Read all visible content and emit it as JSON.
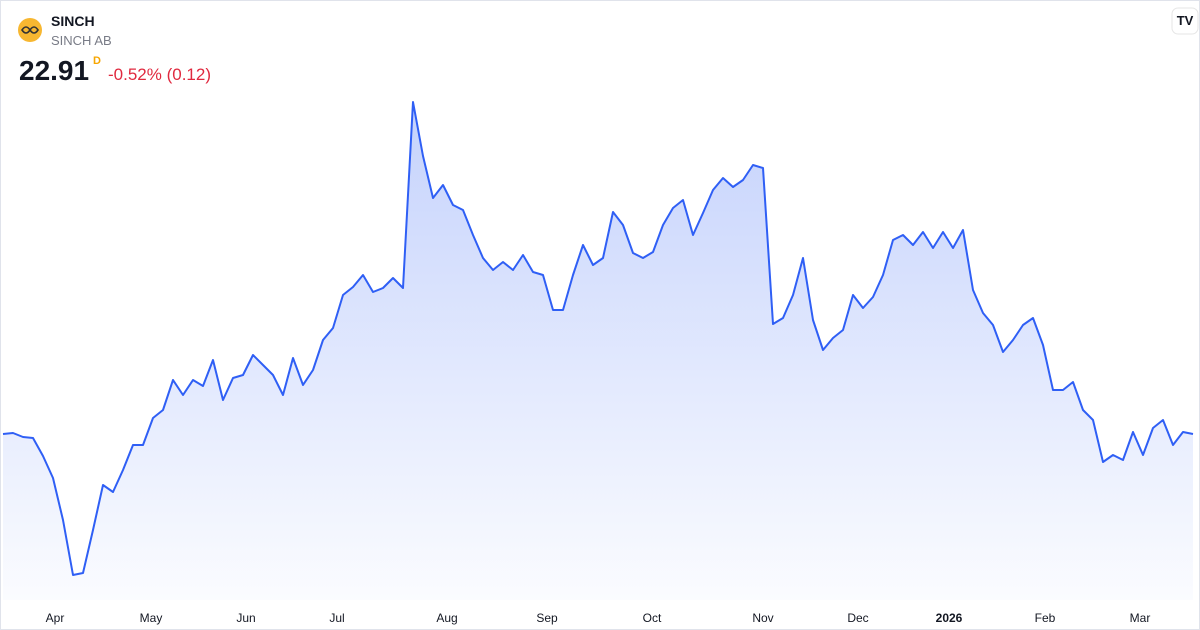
{
  "header": {
    "symbol": "SINCH",
    "name": "SINCH AB",
    "price": "22.91",
    "interval": "D",
    "change": "-0.52% (0.12)"
  },
  "chart_data": {
    "type": "area",
    "series": [
      {
        "name": "SINCH",
        "color": "#2f5ff5",
        "values": [
          22.91,
          22.95,
          22.79,
          22.75,
          22.03,
          21.15,
          19.47,
          17.27,
          17.35,
          19.07,
          20.87,
          20.59,
          21.47,
          22.47,
          22.47,
          23.55,
          23.87,
          25.07,
          24.47,
          25.07,
          24.83,
          25.87,
          24.27,
          25.15,
          25.27,
          26.07,
          25.67,
          25.27,
          24.47,
          25.95,
          24.87,
          25.47,
          26.67,
          27.15,
          28.47,
          28.79,
          29.27,
          28.59,
          28.75,
          29.15,
          28.75,
          36.19,
          34.03,
          32.35,
          32.87,
          32.07,
          31.87,
          30.87,
          29.95,
          29.47,
          29.79,
          29.47,
          30.07,
          29.39,
          29.27,
          27.87,
          27.87,
          29.27,
          30.47,
          29.67,
          29.95,
          31.79,
          31.27,
          30.15,
          29.95,
          30.19,
          31.27,
          31.95,
          32.27,
          30.87,
          31.75,
          32.67,
          33.15,
          32.79,
          33.07,
          33.67,
          33.55,
          27.31,
          27.55,
          28.47,
          29.95,
          27.47,
          26.27,
          26.75,
          27.07,
          28.47,
          27.95,
          28.39,
          29.27,
          30.67,
          30.87,
          30.47,
          30.99,
          30.35,
          30.99,
          30.35,
          31.07,
          28.67,
          27.75,
          27.27,
          26.19,
          26.67,
          27.27,
          27.55,
          26.47,
          24.67,
          24.67,
          24.99,
          23.87,
          23.47,
          21.79,
          22.07,
          21.87,
          22.99,
          22.07,
          23.15,
          23.47,
          22.47,
          22.99,
          22.91
        ]
      }
    ],
    "xlim": [
      0,
      119
    ],
    "xticks": [
      {
        "value": 5.2,
        "label": "Apr"
      },
      {
        "value": 14.8,
        "label": "May"
      },
      {
        "value": 24.3,
        "label": "Jun"
      },
      {
        "value": 33.4,
        "label": "Jul"
      },
      {
        "value": 44.4,
        "label": "Aug"
      },
      {
        "value": 54.4,
        "label": "Sep"
      },
      {
        "value": 64.9,
        "label": "Oct"
      },
      {
        "value": 76,
        "label": "Nov"
      },
      {
        "value": 85.5,
        "label": "Dec"
      },
      {
        "value": 94.6,
        "label": "2026"
      },
      {
        "value": 104.2,
        "label": "Feb"
      },
      {
        "value": 113.7,
        "label": "Mar"
      }
    ],
    "ylim": [
      16.27,
      36.67
    ]
  }
}
